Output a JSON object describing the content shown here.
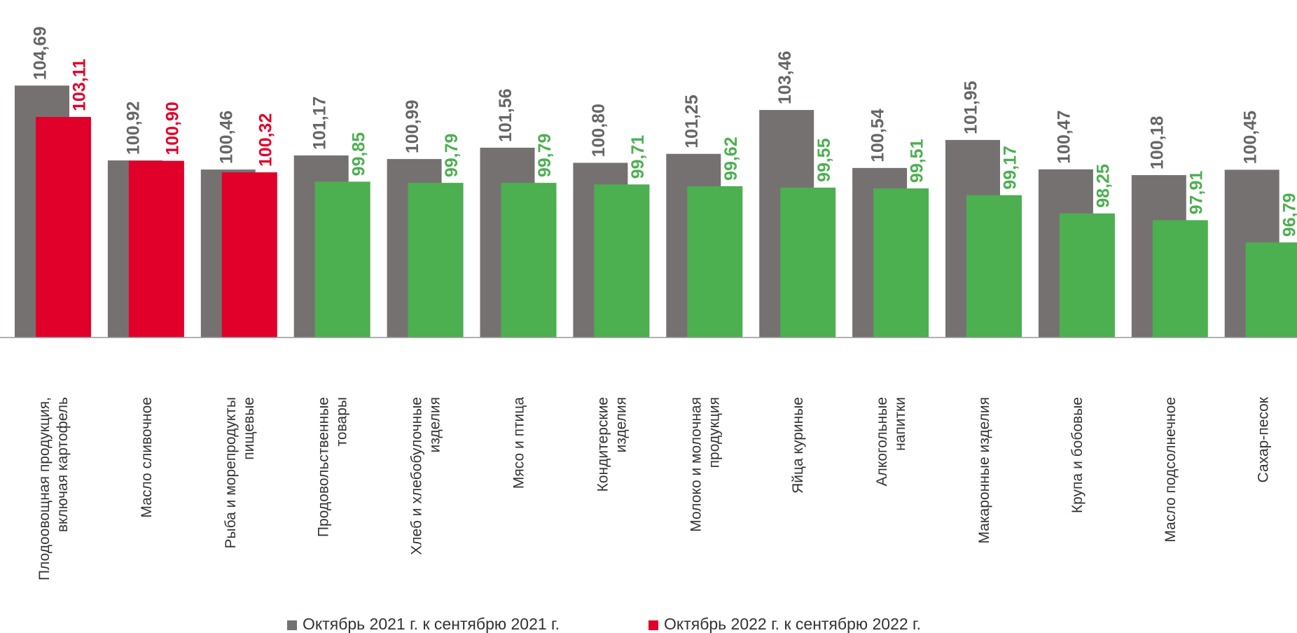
{
  "chart_data": {
    "type": "bar",
    "categories": [
      "Плодоовощная продукция, включая картофель",
      "Масло сливочное",
      "Рыба и морепродукты пищевые",
      "Продовольственные товары",
      "Хлеб и хлебобулочные изделия",
      "Мясо и птица",
      "Кондитерские изделия",
      "Молоко и молочная продукция",
      "Яйца куриные",
      "Алкогольные напитки",
      "Макаронные изделия",
      "Крупа и бобовые",
      "Масло подсолнечное",
      "Сахар-песок"
    ],
    "series": [
      {
        "name": "Октябрь 2021 г. к сентябрю 2021 г.",
        "color": "#767171",
        "values": [
          104.69,
          100.92,
          100.46,
          101.17,
          100.99,
          101.56,
          100.8,
          101.25,
          103.46,
          100.54,
          101.95,
          100.47,
          100.18,
          100.45
        ],
        "value_labels": [
          "104,69",
          "100,92",
          "100,46",
          "101,17",
          "100,99",
          "101,56",
          "100,80",
          "101,25",
          "103,46",
          "100,54",
          "101,95",
          "100,47",
          "100,18",
          "100,45"
        ]
      },
      {
        "name": "Октябрь 2022 г. к сентябрю 2022 г.",
        "color": "#e0002a",
        "colors": [
          "#e0002a",
          "#e0002a",
          "#e0002a",
          "#4caf50",
          "#4caf50",
          "#4caf50",
          "#4caf50",
          "#4caf50",
          "#4caf50",
          "#4caf50",
          "#4caf50",
          "#4caf50",
          "#4caf50",
          "#4caf50"
        ],
        "values": [
          103.11,
          100.9,
          100.32,
          99.85,
          99.79,
          99.79,
          99.71,
          99.62,
          99.55,
          99.51,
          99.17,
          98.25,
          97.91,
          96.79
        ],
        "value_labels": [
          "103,11",
          "100,90",
          "100,32",
          "99,85",
          "99,79",
          "99,79",
          "99,71",
          "99,62",
          "99,55",
          "99,51",
          "99,17",
          "98,25",
          "97,91",
          "96,79"
        ]
      }
    ],
    "ylim": [
      92,
      109
    ]
  }
}
